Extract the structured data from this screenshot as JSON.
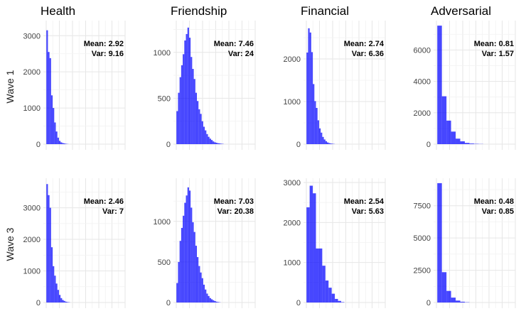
{
  "row_labels": [
    "Wave 1",
    "Wave 3"
  ],
  "column_titles": [
    "Health",
    "Friendship",
    "Financial",
    "Adversarial"
  ],
  "bar_color": "#0000ff",
  "chart_data": [
    {
      "type": "bar",
      "row": 0,
      "col": 0,
      "title": "Health",
      "row_label": "Wave 1",
      "mean_text": "Mean: 2.92",
      "var_text": "Var: 9.16",
      "yticks": [
        0,
        1000,
        2000,
        3000
      ],
      "ylim": [
        0,
        3300
      ],
      "xlim": [
        -1,
        50
      ],
      "binwidth": 1,
      "values": [
        3150,
        2550,
        2380,
        1350,
        1000,
        600,
        350,
        180,
        90,
        50,
        30,
        20,
        10,
        5
      ]
    },
    {
      "type": "bar",
      "row": 0,
      "col": 1,
      "title": "Friendship",
      "row_label": "Wave 1",
      "mean_text": "Mean: 7.46",
      "var_text": "Var: 24",
      "yticks": [
        0,
        500,
        1000
      ],
      "ylim": [
        0,
        1300
      ],
      "xlim": [
        -1,
        50
      ],
      "binwidth": 1,
      "values": [
        360,
        560,
        730,
        860,
        980,
        1130,
        1200,
        1270,
        1160,
        950,
        820,
        710,
        560,
        470,
        380,
        330,
        250,
        190,
        150,
        110,
        80,
        60,
        45,
        30,
        20,
        15,
        10,
        8,
        5,
        3
      ]
    },
    {
      "type": "bar",
      "row": 0,
      "col": 2,
      "title": "Financial",
      "row_label": "Wave 1",
      "mean_text": "Mean: 2.74",
      "var_text": "Var: 6.36",
      "yticks": [
        0,
        1000,
        2000
      ],
      "ylim": [
        0,
        2800
      ],
      "xlim": [
        -1,
        50
      ],
      "binwidth": 1,
      "values": [
        2150,
        2720,
        2620,
        2160,
        1410,
        1010,
        850,
        560,
        370,
        270,
        170,
        110,
        70,
        40,
        25,
        15,
        10,
        5
      ]
    },
    {
      "type": "bar",
      "row": 0,
      "col": 3,
      "title": "Adversarial",
      "row_label": "Wave 1",
      "mean_text": "Mean: 0.81",
      "var_text": "Var: 1.57",
      "yticks": [
        0,
        2000,
        4000,
        6000
      ],
      "ylim": [
        0,
        7600
      ],
      "xlim": [
        -0.5,
        17
      ],
      "binwidth": 1,
      "values": [
        7550,
        3050,
        1500,
        800,
        350,
        180,
        80,
        40,
        20,
        10
      ]
    },
    {
      "type": "bar",
      "row": 1,
      "col": 0,
      "title": "Health",
      "row_label": "Wave 3",
      "mean_text": "Mean: 2.46",
      "var_text": "Var: 7",
      "yticks": [
        0,
        1000,
        2000,
        3000
      ],
      "ylim": [
        0,
        3800
      ],
      "xlim": [
        -1,
        50
      ],
      "binwidth": 1,
      "values": [
        3750,
        3400,
        3000,
        1750,
        1150,
        850,
        600,
        400,
        240,
        140,
        80,
        50,
        25,
        15,
        8
      ]
    },
    {
      "type": "bar",
      "row": 1,
      "col": 1,
      "title": "Friendship",
      "row_label": "Wave 3",
      "mean_text": "Mean: 7.03",
      "var_text": "Var: 20.38",
      "yticks": [
        0,
        500,
        1000
      ],
      "ylim": [
        0,
        1480
      ],
      "xlim": [
        -1,
        50
      ],
      "binwidth": 1,
      "values": [
        240,
        500,
        760,
        920,
        1070,
        1230,
        1320,
        1420,
        1380,
        1170,
        990,
        870,
        700,
        560,
        450,
        370,
        300,
        220,
        160,
        110,
        80,
        55,
        40,
        28,
        18,
        10,
        6,
        3
      ]
    },
    {
      "type": "bar",
      "row": 1,
      "col": 2,
      "title": "Financial",
      "row_label": "Wave 3",
      "mean_text": "Mean: 2.54",
      "var_text": "Var: 5.63",
      "yticks": [
        0,
        1000,
        2000,
        3000
      ],
      "ylim": [
        0,
        3000
      ],
      "xlim": [
        -1,
        50
      ],
      "binwidth": 2,
      "values": [
        2380,
        2920,
        2730,
        1350,
        1350,
        920,
        550,
        370,
        220,
        90,
        40,
        10
      ]
    },
    {
      "type": "bar",
      "row": 1,
      "col": 3,
      "title": "Adversarial",
      "row_label": "Wave 3",
      "mean_text": "Mean: 0.48",
      "var_text": "Var: 0.85",
      "yticks": [
        0,
        2500,
        5000,
        7500
      ],
      "ylim": [
        0,
        9300
      ],
      "xlim": [
        -0.5,
        17
      ],
      "binwidth": 1,
      "values": [
        9250,
        2350,
        900,
        380,
        150,
        60,
        20
      ]
    }
  ]
}
